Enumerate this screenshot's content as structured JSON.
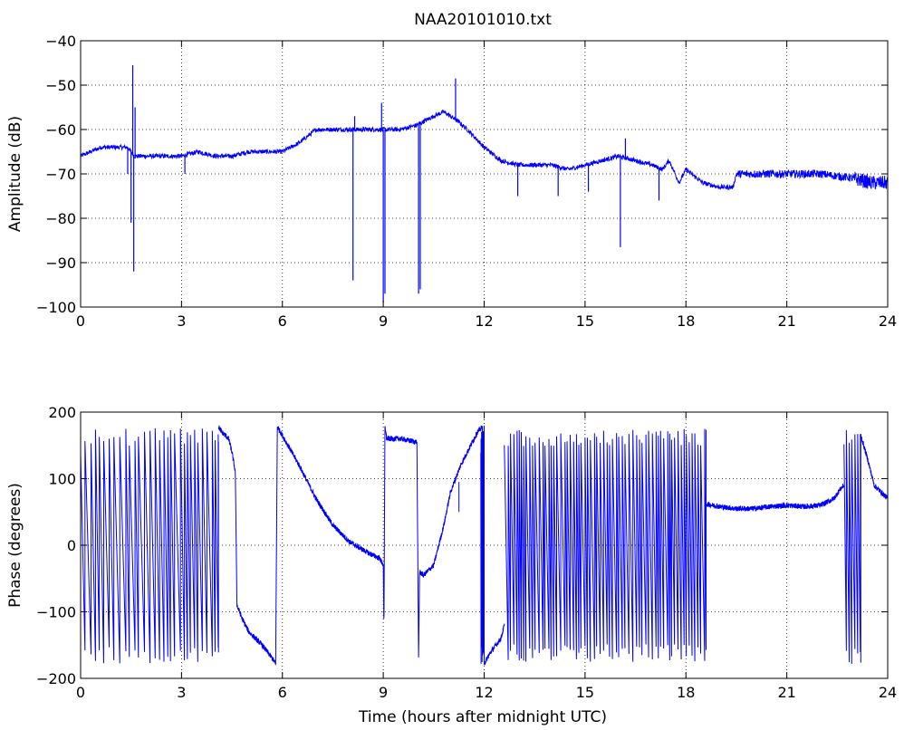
{
  "chart_data": [
    {
      "type": "line",
      "title": "NAA20101010.txt",
      "xlabel": "",
      "ylabel": "Amplitude (dB)",
      "xlim": [
        0,
        24
      ],
      "ylim": [
        -100,
        -40
      ],
      "xticks": [
        0,
        3,
        6,
        9,
        12,
        15,
        18,
        21,
        24
      ],
      "yticks": [
        -100,
        -90,
        -80,
        -70,
        -60,
        -50,
        -40
      ],
      "grid": true,
      "line_color": "#0000ff",
      "series": [
        {
          "x": [
            0,
            0.3,
            0.6,
            1.0,
            1.4,
            1.5,
            1.6,
            2.0,
            2.5,
            3.0,
            3.5,
            4.0,
            4.5,
            5.0,
            5.5,
            6.0,
            6.5,
            7.0,
            7.5,
            8.0,
            8.5,
            9.0,
            9.5,
            10.0,
            10.5,
            10.8,
            11.2,
            11.5,
            12.0,
            12.5,
            13.0,
            13.5,
            14.0,
            14.5,
            15.0,
            15.5,
            16.0,
            16.5,
            17.0,
            17.3,
            17.5,
            17.8,
            18.0,
            18.5,
            19.0,
            19.4,
            19.5,
            20.0,
            21.0,
            22.0,
            23.0,
            23.5,
            24.0
          ],
          "y": [
            -66,
            -65,
            -64,
            -64,
            -64,
            -65,
            -66,
            -66,
            -66,
            -66,
            -65,
            -66,
            -66,
            -65,
            -65,
            -65,
            -63,
            -60,
            -60,
            -60,
            -60,
            -60,
            -60,
            -59,
            -57,
            -56,
            -58,
            -60,
            -64,
            -67,
            -68,
            -68,
            -68,
            -69,
            -68,
            -67,
            -66,
            -67,
            -68,
            -69,
            -67,
            -72,
            -69,
            -72,
            -73,
            -73,
            -70,
            -70,
            -70,
            -70,
            -71,
            -72,
            -72
          ],
          "spikes": [
            {
              "x": 1.4,
              "y": -70
            },
            {
              "x": 1.5,
              "y": -81
            },
            {
              "x": 1.55,
              "y": -45.5
            },
            {
              "x": 1.58,
              "y": -92
            },
            {
              "x": 1.62,
              "y": -55
            },
            {
              "x": 3.1,
              "y": -70
            },
            {
              "x": 8.1,
              "y": -94
            },
            {
              "x": 8.15,
              "y": -57
            },
            {
              "x": 8.95,
              "y": -54
            },
            {
              "x": 9.0,
              "y": -99
            },
            {
              "x": 9.05,
              "y": -97
            },
            {
              "x": 10.05,
              "y": -97
            },
            {
              "x": 10.1,
              "y": -96
            },
            {
              "x": 11.15,
              "y": -48.5
            },
            {
              "x": 13.0,
              "y": -75
            },
            {
              "x": 14.2,
              "y": -75
            },
            {
              "x": 15.1,
              "y": -74
            },
            {
              "x": 16.05,
              "y": -86.5
            },
            {
              "x": 16.2,
              "y": -62
            },
            {
              "x": 17.2,
              "y": -76
            }
          ]
        }
      ]
    },
    {
      "type": "line",
      "title": "",
      "xlabel": "Time (hours after midnight UTC)",
      "ylabel": "Phase (degrees)",
      "xlim": [
        0,
        24
      ],
      "ylim": [
        -200,
        200
      ],
      "xticks": [
        0,
        3,
        6,
        9,
        12,
        15,
        18,
        21,
        24
      ],
      "yticks": [
        -200,
        -100,
        0,
        100,
        200
      ],
      "grid": true,
      "line_color": "#0000ff",
      "segments": [
        {
          "kind": "wrap",
          "x0": 0.0,
          "x1": 4.1,
          "period": 0.13,
          "ymin": -178,
          "ymax": 176
        },
        {
          "kind": "path",
          "x": [
            4.1,
            4.2,
            4.4,
            4.5,
            4.6,
            4.65,
            4.8,
            5.0,
            5.4,
            5.7,
            5.8
          ],
          "y": [
            178,
            170,
            160,
            140,
            110,
            -90,
            -110,
            -130,
            -150,
            -170,
            -178
          ]
        },
        {
          "kind": "path",
          "x": [
            5.8,
            5.85,
            6.0,
            6.5,
            7.0,
            7.5,
            8.0,
            8.5,
            8.9,
            9.0
          ],
          "y": [
            -178,
            178,
            165,
            120,
            70,
            30,
            5,
            -10,
            -20,
            -30
          ]
        },
        {
          "kind": "path",
          "x": [
            9.0,
            9.02,
            9.05,
            9.1,
            9.5,
            10.0,
            10.05,
            10.08,
            10.2,
            10.5,
            10.8,
            11.0,
            11.3,
            11.5,
            11.8,
            11.95
          ],
          "y": [
            -30,
            -128,
            180,
            160,
            160,
            155,
            -170,
            -40,
            -45,
            -30,
            30,
            80,
            120,
            140,
            170,
            178
          ]
        },
        {
          "kind": "spike",
          "x": 11.25,
          "y0": 95,
          "y1": 50
        },
        {
          "kind": "wrap",
          "x0": 11.9,
          "x1": 12.0,
          "period": 0.012,
          "ymin": -180,
          "ymax": 180
        },
        {
          "kind": "path",
          "x": [
            12.0,
            12.2,
            12.5,
            12.6
          ],
          "y": [
            -178,
            -160,
            -140,
            -120
          ]
        },
        {
          "kind": "wrap",
          "x0": 12.6,
          "x1": 18.6,
          "period": 0.09,
          "ymin": -175,
          "ymax": 175
        },
        {
          "kind": "path",
          "x": [
            18.6,
            19.0,
            19.5,
            20.0,
            20.5,
            21.0,
            21.5,
            22.0,
            22.4,
            22.6,
            22.7
          ],
          "y": [
            62,
            58,
            55,
            55,
            58,
            60,
            58,
            60,
            70,
            85,
            90
          ]
        },
        {
          "kind": "wrap",
          "x0": 22.7,
          "x1": 23.2,
          "period": 0.07,
          "ymin": -180,
          "ymax": 180
        },
        {
          "kind": "path",
          "x": [
            23.2,
            23.4,
            23.6,
            23.8,
            24.0
          ],
          "y": [
            165,
            130,
            90,
            80,
            70
          ]
        }
      ]
    }
  ]
}
